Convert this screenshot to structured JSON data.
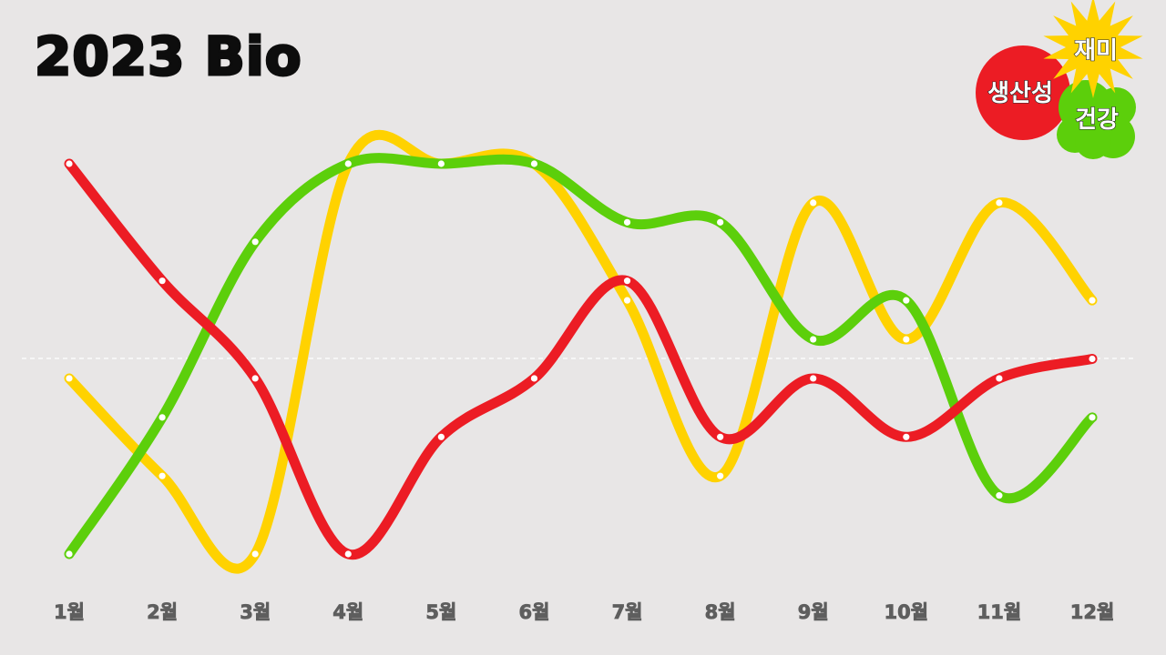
{
  "title": "2023 Bio",
  "legend": [
    {
      "label": "생산성",
      "color": "#ec1c24",
      "icon": "red-circle"
    },
    {
      "label": "재미",
      "color": "#ffd200",
      "icon": "yellow-starburst"
    },
    {
      "label": "건강",
      "color": "#5ccf0b",
      "icon": "green-blob"
    }
  ],
  "chart_data": {
    "type": "line",
    "title": "2023 Bio",
    "xlabel": "",
    "ylabel": "",
    "categories": [
      "1월",
      "2월",
      "3월",
      "4월",
      "5월",
      "6월",
      "7월",
      "8월",
      "9월",
      "10월",
      "11월",
      "12월"
    ],
    "ylim": [
      -10,
      10
    ],
    "grid": false,
    "baseline": 0,
    "legend_position": "top-right",
    "series": [
      {
        "name": "재미",
        "color": "#ffd200",
        "values": [
          -1,
          -6,
          -10,
          10,
          10,
          10,
          3,
          -6,
          8,
          1,
          8,
          3
        ]
      },
      {
        "name": "건강",
        "color": "#5ccf0b",
        "values": [
          -10,
          -3,
          6,
          10,
          10,
          10,
          7,
          7,
          1,
          3,
          -7,
          -3
        ]
      },
      {
        "name": "생산성",
        "color": "#ec1c24",
        "values": [
          10,
          4,
          -1,
          -10,
          -4,
          -1,
          4,
          -4,
          -1,
          -4,
          -1,
          0
        ]
      }
    ]
  }
}
